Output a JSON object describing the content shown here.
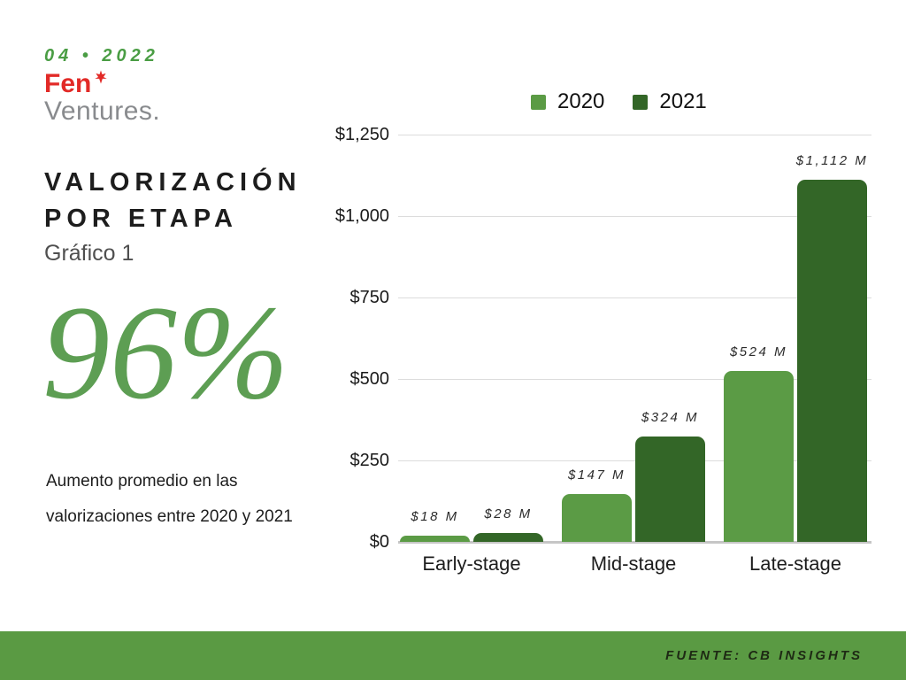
{
  "header": {
    "date": "04 • 2022",
    "logo": {
      "primary": "Fen",
      "secondary": "Ventures."
    }
  },
  "left_panel": {
    "title_line1": "VALORIZACIÓN",
    "title_line2": "POR ETAPA",
    "subtitle": "Gráfico 1",
    "stat_value": "96%",
    "stat_caption_line1": "Aumento promedio en las",
    "stat_caption_line2": "valorizaciones entre 2020 y 2021"
  },
  "footer": {
    "source": "FUENTE: CB INSIGHTS"
  },
  "colors": {
    "accent_green": "#4a9d44",
    "series_2020": "#5b9b45",
    "series_2021": "#336627",
    "footer_band": "#5a9a43",
    "logo_red": "#e22a27",
    "logo_gray": "#898b8e",
    "stat_green": "#5d9e53",
    "gridline": "#dcdcdc",
    "axis_line": "#c6c6c6"
  },
  "chart_data": {
    "type": "bar",
    "categories": [
      "Early-stage",
      "Mid-stage",
      "Late-stage"
    ],
    "series": [
      {
        "name": "2020",
        "values": [
          18,
          147,
          524
        ],
        "value_labels": [
          "$18 M",
          "$147 M",
          "$524 M"
        ],
        "color": "#5b9b45"
      },
      {
        "name": "2021",
        "values": [
          28,
          324,
          1112
        ],
        "value_labels": [
          "$28 M",
          "$324 M",
          "$1,112 M"
        ],
        "color": "#336627"
      }
    ],
    "y_ticks": [
      {
        "value": 0,
        "label": "$0"
      },
      {
        "value": 250,
        "label": "$250"
      },
      {
        "value": 500,
        "label": "$500"
      },
      {
        "value": 750,
        "label": "$750"
      },
      {
        "value": 1000,
        "label": "$1,000"
      },
      {
        "value": 1250,
        "label": "$1,250"
      }
    ],
    "ylim": [
      0,
      1250
    ],
    "legend_position": "top",
    "grid": true
  }
}
